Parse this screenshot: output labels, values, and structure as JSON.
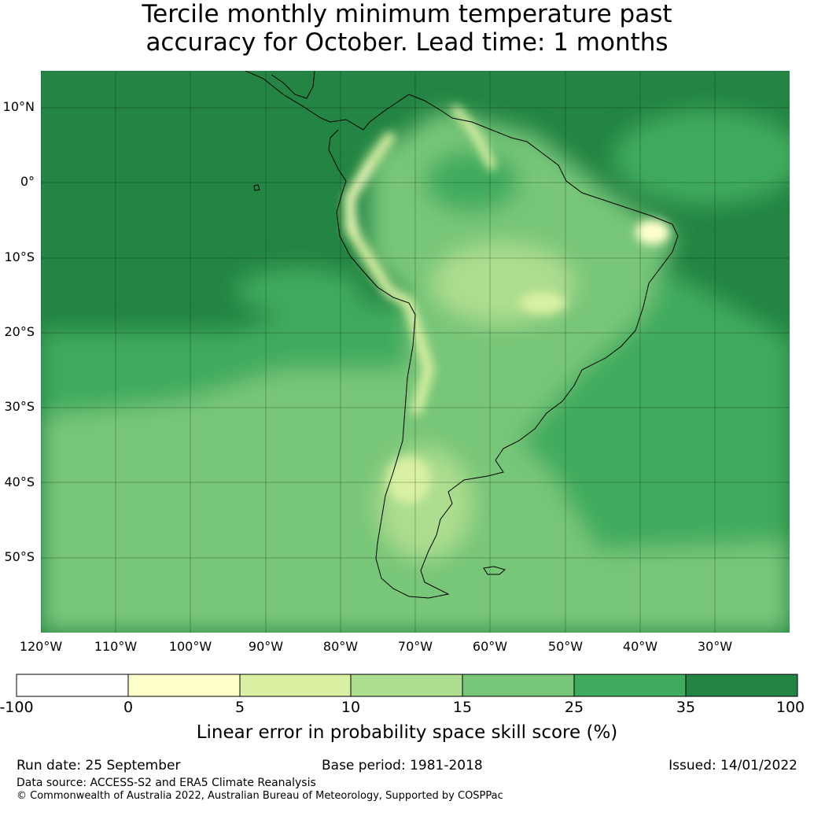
{
  "title": {
    "line1": "Tercile monthly minimum temperature past",
    "line2": "accuracy for October. Lead time: 1 months"
  },
  "map": {
    "region": "South America",
    "lat_labels": [
      "10°N",
      "0°",
      "10°S",
      "20°S",
      "30°S",
      "40°S",
      "50°S"
    ],
    "lon_labels": [
      "120°W",
      "110°W",
      "100°W",
      "90°W",
      "80°W",
      "70°W",
      "60°W",
      "50°W",
      "40°W",
      "30°W"
    ],
    "extent": {
      "lon": [
        -120,
        -20
      ],
      "lat": [
        -60,
        15
      ]
    },
    "gridlines": true
  },
  "colorbar": {
    "ticks": [
      "-100",
      "0",
      "5",
      "10",
      "15",
      "25",
      "35",
      "100"
    ],
    "colors": [
      "#ffffff",
      "#ffffcc",
      "#d9f0a3",
      "#addd8e",
      "#78c679",
      "#41ab5d",
      "#238443"
    ],
    "label": "Linear error in probability space skill score (%)"
  },
  "footer": {
    "run_date": "Run date: 25 September",
    "base_period": "Base period: 1981-2018",
    "issued": "Issued: 14/01/2022",
    "data_source": "Data source: ACCESS-S2 and ERA5 Climate Reanalysis",
    "copyright": "© Commonwealth of Australia 2022, Australian Bureau of Meteorology, Supported by COSPPac"
  }
}
